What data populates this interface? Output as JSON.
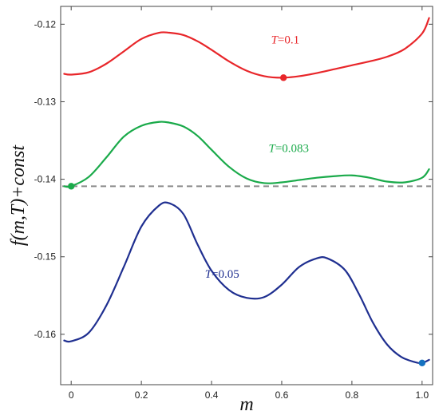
{
  "chart_data": {
    "type": "line",
    "title": "",
    "xlabel": "m",
    "ylabel": "f(m,T)+const",
    "xlim": [
      -0.03,
      1.03
    ],
    "ylim": [
      -0.1665,
      -0.1177
    ],
    "xticks": [
      0,
      0.2,
      0.4,
      0.6,
      0.8,
      1.0
    ],
    "xtick_labels": [
      "0",
      "0.2",
      "0.4",
      "0.6",
      "0.8",
      "1.0"
    ],
    "yticks": [
      -0.12,
      -0.13,
      -0.14,
      -0.15,
      -0.16
    ],
    "ytick_labels": [
      "-0.12",
      "-0.13",
      "-0.14",
      "-0.15",
      "-0.16"
    ],
    "grid": false,
    "legend": "none",
    "reference_line": {
      "y": -0.1409,
      "style": "dashed",
      "color": "#8a8a8a"
    },
    "series": [
      {
        "label_var": "T",
        "label_value": "=0.1",
        "label_at": [
          0.61,
          -0.1225
        ],
        "color": "#e8262a",
        "x": [
          -0.02,
          0.0,
          0.05,
          0.1,
          0.15,
          0.2,
          0.25,
          0.28,
          0.32,
          0.36,
          0.4,
          0.45,
          0.5,
          0.55,
          0.6,
          0.65,
          0.7,
          0.75,
          0.8,
          0.85,
          0.9,
          0.95,
          1.0,
          1.02
        ],
        "y": [
          -0.1264,
          -0.1265,
          -0.1262,
          -0.1251,
          -0.1235,
          -0.1219,
          -0.1211,
          -0.1211,
          -0.1214,
          -0.1222,
          -0.1233,
          -0.1248,
          -0.126,
          -0.1267,
          -0.1269,
          -0.1267,
          -0.1263,
          -0.1258,
          -0.1253,
          -0.1248,
          -0.1242,
          -0.1232,
          -0.1212,
          -0.1192
        ],
        "marker": {
          "x": 0.605,
          "y": -0.1269,
          "color": "#e8262a"
        }
      },
      {
        "label_var": "T",
        "label_value": "=0.083",
        "label_at": [
          0.62,
          -0.1365
        ],
        "color": "#1aaa4a",
        "x": [
          -0.02,
          0.0,
          0.05,
          0.1,
          0.15,
          0.2,
          0.25,
          0.28,
          0.32,
          0.36,
          0.4,
          0.45,
          0.5,
          0.55,
          0.6,
          0.65,
          0.7,
          0.75,
          0.8,
          0.85,
          0.9,
          0.95,
          1.0,
          1.02
        ],
        "y": [
          -0.1409,
          -0.1409,
          -0.1397,
          -0.1372,
          -0.1345,
          -0.1331,
          -0.1326,
          -0.1327,
          -0.1332,
          -0.1344,
          -0.1362,
          -0.1384,
          -0.1399,
          -0.1405,
          -0.1404,
          -0.1401,
          -0.1398,
          -0.1396,
          -0.1395,
          -0.1398,
          -0.1403,
          -0.1404,
          -0.1398,
          -0.1387
        ],
        "marker": {
          "x": 0.0,
          "y": -0.1409,
          "color": "#1aaa4a"
        }
      },
      {
        "label_var": "T",
        "label_value": "=0.05",
        "label_at": [
          0.43,
          -0.1527
        ],
        "color": "#1f2f90",
        "x": [
          -0.02,
          0.0,
          0.05,
          0.1,
          0.15,
          0.2,
          0.25,
          0.28,
          0.32,
          0.36,
          0.4,
          0.45,
          0.5,
          0.55,
          0.6,
          0.65,
          0.7,
          0.73,
          0.78,
          0.82,
          0.86,
          0.9,
          0.94,
          0.98,
          1.0,
          1.02
        ],
        "y": [
          -0.1608,
          -0.1609,
          -0.1598,
          -0.1563,
          -0.1513,
          -0.1461,
          -0.1434,
          -0.1431,
          -0.1445,
          -0.1484,
          -0.1518,
          -0.1543,
          -0.1553,
          -0.1552,
          -0.1536,
          -0.1513,
          -0.1502,
          -0.1502,
          -0.1517,
          -0.1548,
          -0.1585,
          -0.1613,
          -0.1629,
          -0.1636,
          -0.1637,
          -0.1633
        ],
        "marker": {
          "x": 1.0,
          "y": -0.1637,
          "color": "#1472c0"
        }
      }
    ]
  }
}
